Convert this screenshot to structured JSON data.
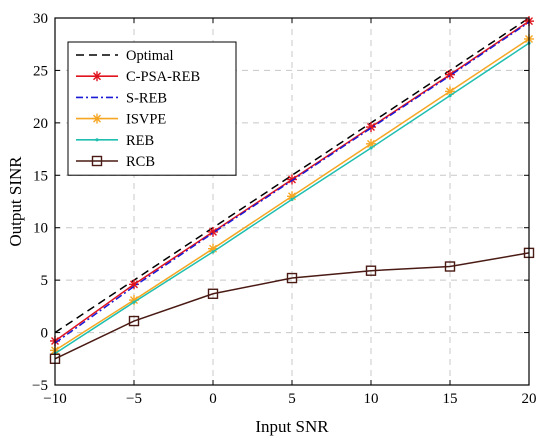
{
  "chart_data": {
    "type": "line",
    "title": "",
    "xlabel": "Input SNR",
    "ylabel": "Output SINR",
    "xlim": [
      -10,
      20
    ],
    "ylim": [
      -5,
      30
    ],
    "xticks": [
      -10,
      -5,
      0,
      5,
      10,
      15,
      20
    ],
    "yticks": [
      -5,
      0,
      5,
      10,
      15,
      20,
      25,
      30
    ],
    "grid": true,
    "legend_position": "top-left",
    "x": [
      -10,
      -5,
      0,
      5,
      10,
      15,
      20
    ],
    "series": [
      {
        "name": "Optimal",
        "color": "#000000",
        "dash": "dashed",
        "marker": "none",
        "values": [
          0.0,
          5.0,
          10.0,
          15.0,
          20.0,
          25.0,
          30.0
        ]
      },
      {
        "name": "C-PSA-REB",
        "color": "#e0141e",
        "dash": "solid",
        "marker": "asterisk",
        "values": [
          -0.8,
          4.6,
          9.6,
          14.6,
          19.6,
          24.6,
          29.7
        ]
      },
      {
        "name": "S-REB",
        "color": "#1a1ad6",
        "dash": "dashdot",
        "marker": "none",
        "values": [
          -1.0,
          4.4,
          9.5,
          14.5,
          19.5,
          24.5,
          29.6
        ]
      },
      {
        "name": "ISVPE",
        "color": "#f5a623",
        "dash": "solid",
        "marker": "asterisk",
        "values": [
          -1.7,
          3.1,
          8.0,
          13.0,
          18.0,
          23.0,
          28.0
        ]
      },
      {
        "name": "REB",
        "color": "#1fbfb0",
        "dash": "solid",
        "marker": "dot",
        "values": [
          -2.0,
          2.9,
          7.7,
          12.7,
          17.6,
          22.6,
          27.6
        ]
      },
      {
        "name": "RCB",
        "color": "#4a1a14",
        "dash": "solid",
        "marker": "square",
        "values": [
          -2.5,
          1.1,
          3.7,
          5.2,
          5.9,
          6.3,
          7.6
        ]
      }
    ]
  }
}
